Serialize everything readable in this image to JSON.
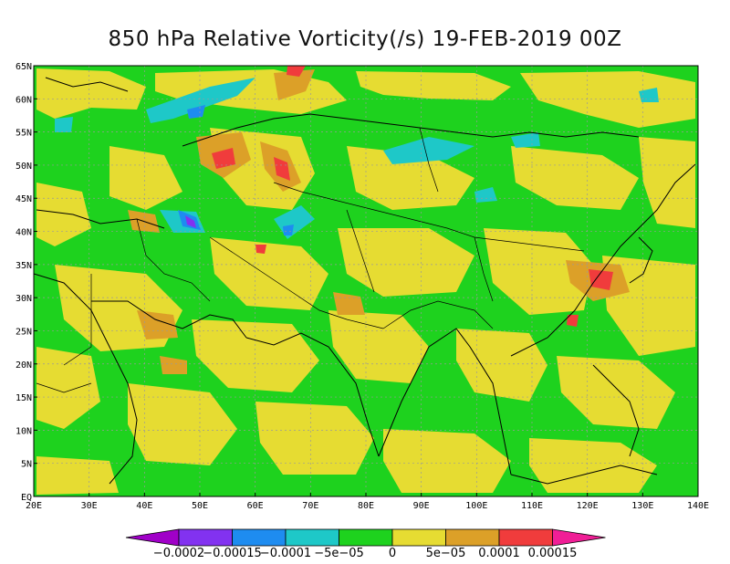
{
  "title": "850 hPa Relative Vorticity(/s) 19-FEB-2019 00Z",
  "map": {
    "lat_labels": [
      "65N",
      "60N",
      "55N",
      "50N",
      "45N",
      "40N",
      "35N",
      "30N",
      "25N",
      "20N",
      "15N",
      "10N",
      "5N",
      "EQ"
    ],
    "lat_values": [
      65,
      60,
      55,
      50,
      45,
      40,
      35,
      30,
      25,
      20,
      15,
      10,
      5,
      0
    ],
    "lon_labels": [
      "20E",
      "30E",
      "40E",
      "50E",
      "60E",
      "70E",
      "80E",
      "90E",
      "100E",
      "110E",
      "120E",
      "130E",
      "140E"
    ],
    "lon_values": [
      20,
      30,
      40,
      50,
      60,
      70,
      80,
      90,
      100,
      110,
      120,
      130,
      140
    ],
    "lon_range": [
      20,
      140
    ],
    "lat_range": [
      0,
      65
    ]
  },
  "colorbar": {
    "labels": [
      "-0.0002",
      "-0.00015",
      "-0.0001",
      "-5e-05",
      "0",
      "5e-05",
      "0.0001",
      "0.00015"
    ],
    "colors": [
      "#a000c8",
      "#8232f0",
      "#1e8cf0",
      "#1ec8c8",
      "#1ed21e",
      "#e6dc32",
      "#dca028",
      "#f03c3c",
      "#f01e96"
    ]
  }
}
